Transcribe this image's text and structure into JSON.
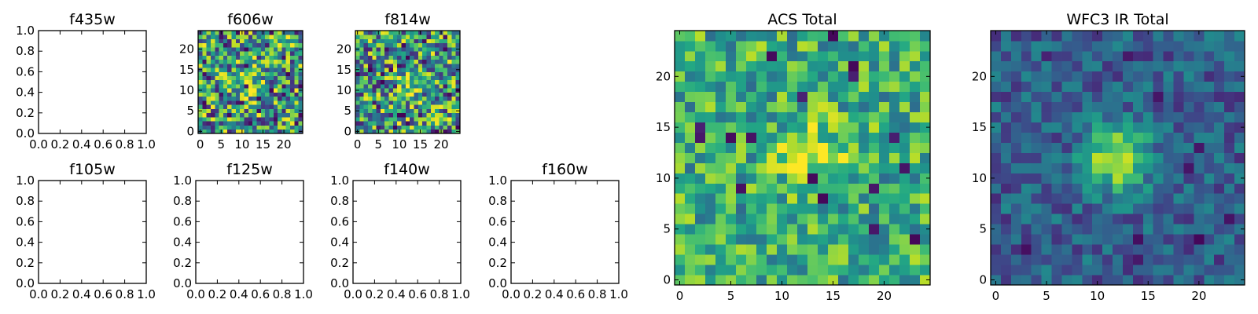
{
  "chart_data": [
    {
      "type": "heatmap",
      "title": "f435w",
      "empty": true,
      "xlim": [
        0,
        1
      ],
      "ylim": [
        0,
        1
      ],
      "xticks": [
        "0.0",
        "0.2",
        "0.4",
        "0.6",
        "0.8",
        "1.0"
      ],
      "yticks": [
        "0.0",
        "0.2",
        "0.4",
        "0.6",
        "0.8",
        "1.0"
      ]
    },
    {
      "type": "heatmap",
      "title": "f606w",
      "empty": false,
      "grid_size": 25,
      "xlim": [
        -0.5,
        24.5
      ],
      "ylim": [
        -0.5,
        24.5
      ],
      "xticks": [
        "0",
        "5",
        "10",
        "15",
        "20"
      ],
      "yticks": [
        "0",
        "5",
        "10",
        "15",
        "20"
      ],
      "colormap": "viridis",
      "noise": "high",
      "source_peak": [
        12,
        12
      ]
    },
    {
      "type": "heatmap",
      "title": "f814w",
      "empty": false,
      "grid_size": 25,
      "xlim": [
        -0.5,
        24.5
      ],
      "ylim": [
        -0.5,
        24.5
      ],
      "xticks": [
        "0",
        "5",
        "10",
        "15",
        "20"
      ],
      "yticks": [
        "0",
        "5",
        "10",
        "15",
        "20"
      ],
      "colormap": "viridis",
      "noise": "high",
      "source_peak": [
        12,
        12
      ]
    },
    {
      "type": "heatmap",
      "title": "f105w",
      "empty": true,
      "xlim": [
        0,
        1
      ],
      "ylim": [
        0,
        1
      ],
      "xticks": [
        "0.0",
        "0.2",
        "0.4",
        "0.6",
        "0.8",
        "1.0"
      ],
      "yticks": [
        "0.0",
        "0.2",
        "0.4",
        "0.6",
        "0.8",
        "1.0"
      ]
    },
    {
      "type": "heatmap",
      "title": "f125w",
      "empty": true,
      "xlim": [
        0,
        1
      ],
      "ylim": [
        0,
        1
      ],
      "xticks": [
        "0.0",
        "0.2",
        "0.4",
        "0.6",
        "0.8",
        "1.0"
      ],
      "yticks": [
        "0.0",
        "0.2",
        "0.4",
        "0.6",
        "0.8",
        "1.0"
      ]
    },
    {
      "type": "heatmap",
      "title": "f140w",
      "empty": true,
      "xlim": [
        0,
        1
      ],
      "ylim": [
        0,
        1
      ],
      "xticks": [
        "0.0",
        "0.2",
        "0.4",
        "0.6",
        "0.8",
        "1.0"
      ],
      "yticks": [
        "0.0",
        "0.2",
        "0.4",
        "0.6",
        "0.8",
        "1.0"
      ]
    },
    {
      "type": "heatmap",
      "title": "f160w",
      "empty": true,
      "xlim": [
        0,
        1
      ],
      "ylim": [
        0,
        1
      ],
      "xticks": [
        "0.0",
        "0.2",
        "0.4",
        "0.6",
        "0.8",
        "1.0"
      ],
      "yticks": [
        "0.0",
        "0.2",
        "0.4",
        "0.6",
        "0.8",
        "1.0"
      ]
    },
    {
      "type": "heatmap",
      "title": "ACS Total",
      "empty": false,
      "grid_size": 25,
      "xlim": [
        -0.5,
        24.5
      ],
      "ylim": [
        -0.5,
        24.5
      ],
      "xticks": [
        "0",
        "5",
        "10",
        "15",
        "20"
      ],
      "yticks": [
        "0",
        "5",
        "10",
        "15",
        "20"
      ],
      "colormap": "viridis",
      "noise": "medium",
      "source_peak": [
        13,
        12
      ]
    },
    {
      "type": "heatmap",
      "title": "WFC3 IR Total",
      "empty": false,
      "grid_size": 25,
      "xlim": [
        -0.5,
        24.5
      ],
      "ylim": [
        -0.5,
        24.5
      ],
      "xticks": [
        "0",
        "5",
        "10",
        "15",
        "20"
      ],
      "yticks": [
        "0",
        "5",
        "10",
        "15",
        "20"
      ],
      "colormap": "viridis",
      "noise": "low",
      "source_peak": [
        12,
        12
      ]
    }
  ]
}
